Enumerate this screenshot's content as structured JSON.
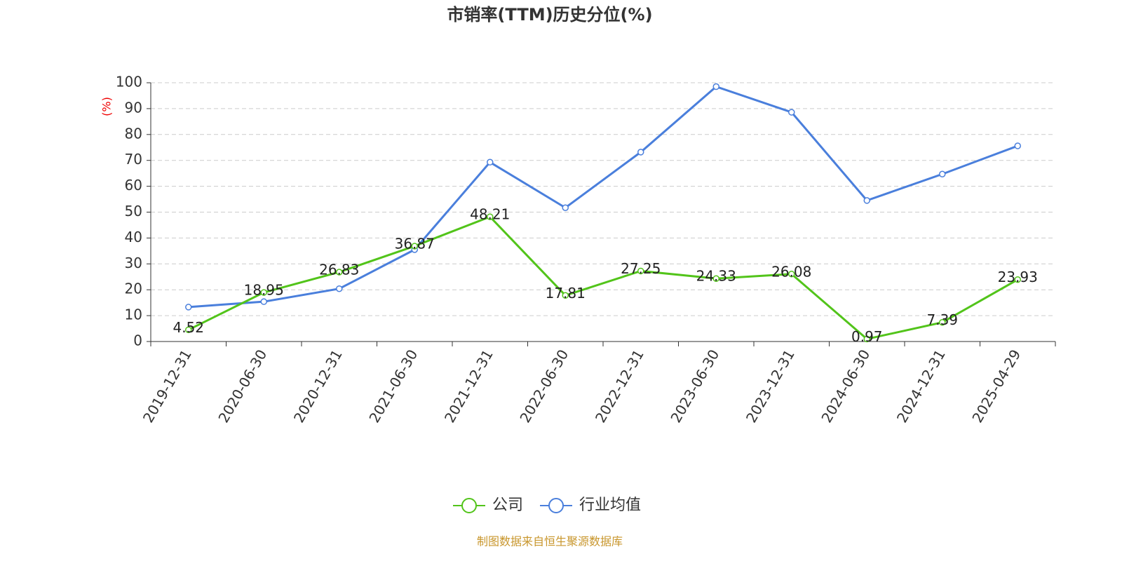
{
  "chart_data": {
    "type": "line",
    "title": "市销率(TTM)历史分位(%)",
    "y_label": "(%)",
    "categories": [
      "2019-12-31",
      "2020-06-30",
      "2020-12-31",
      "2021-06-30",
      "2021-12-31",
      "2022-06-30",
      "2022-12-31",
      "2023-06-30",
      "2023-12-31",
      "2024-06-30",
      "2024-12-31",
      "2025-04-29"
    ],
    "series": [
      {
        "name": "公司",
        "color": "#52c41a",
        "values": [
          4.52,
          18.95,
          26.83,
          36.87,
          48.21,
          17.81,
          27.25,
          24.33,
          26.08,
          0.97,
          7.39,
          23.93
        ]
      },
      {
        "name": "行业均值",
        "color": "#4a7fdc",
        "values": [
          13.3,
          15.4,
          20.4,
          35.5,
          69.3,
          51.7,
          73.2,
          98.5,
          88.6,
          54.5,
          64.7,
          75.6
        ]
      }
    ],
    "ylim": [
      0,
      100
    ],
    "yticks": [
      0,
      10,
      20,
      30,
      40,
      50,
      60,
      70,
      80,
      90,
      100
    ],
    "grid": true,
    "source": "制图数据来自恒生聚源数据库"
  }
}
